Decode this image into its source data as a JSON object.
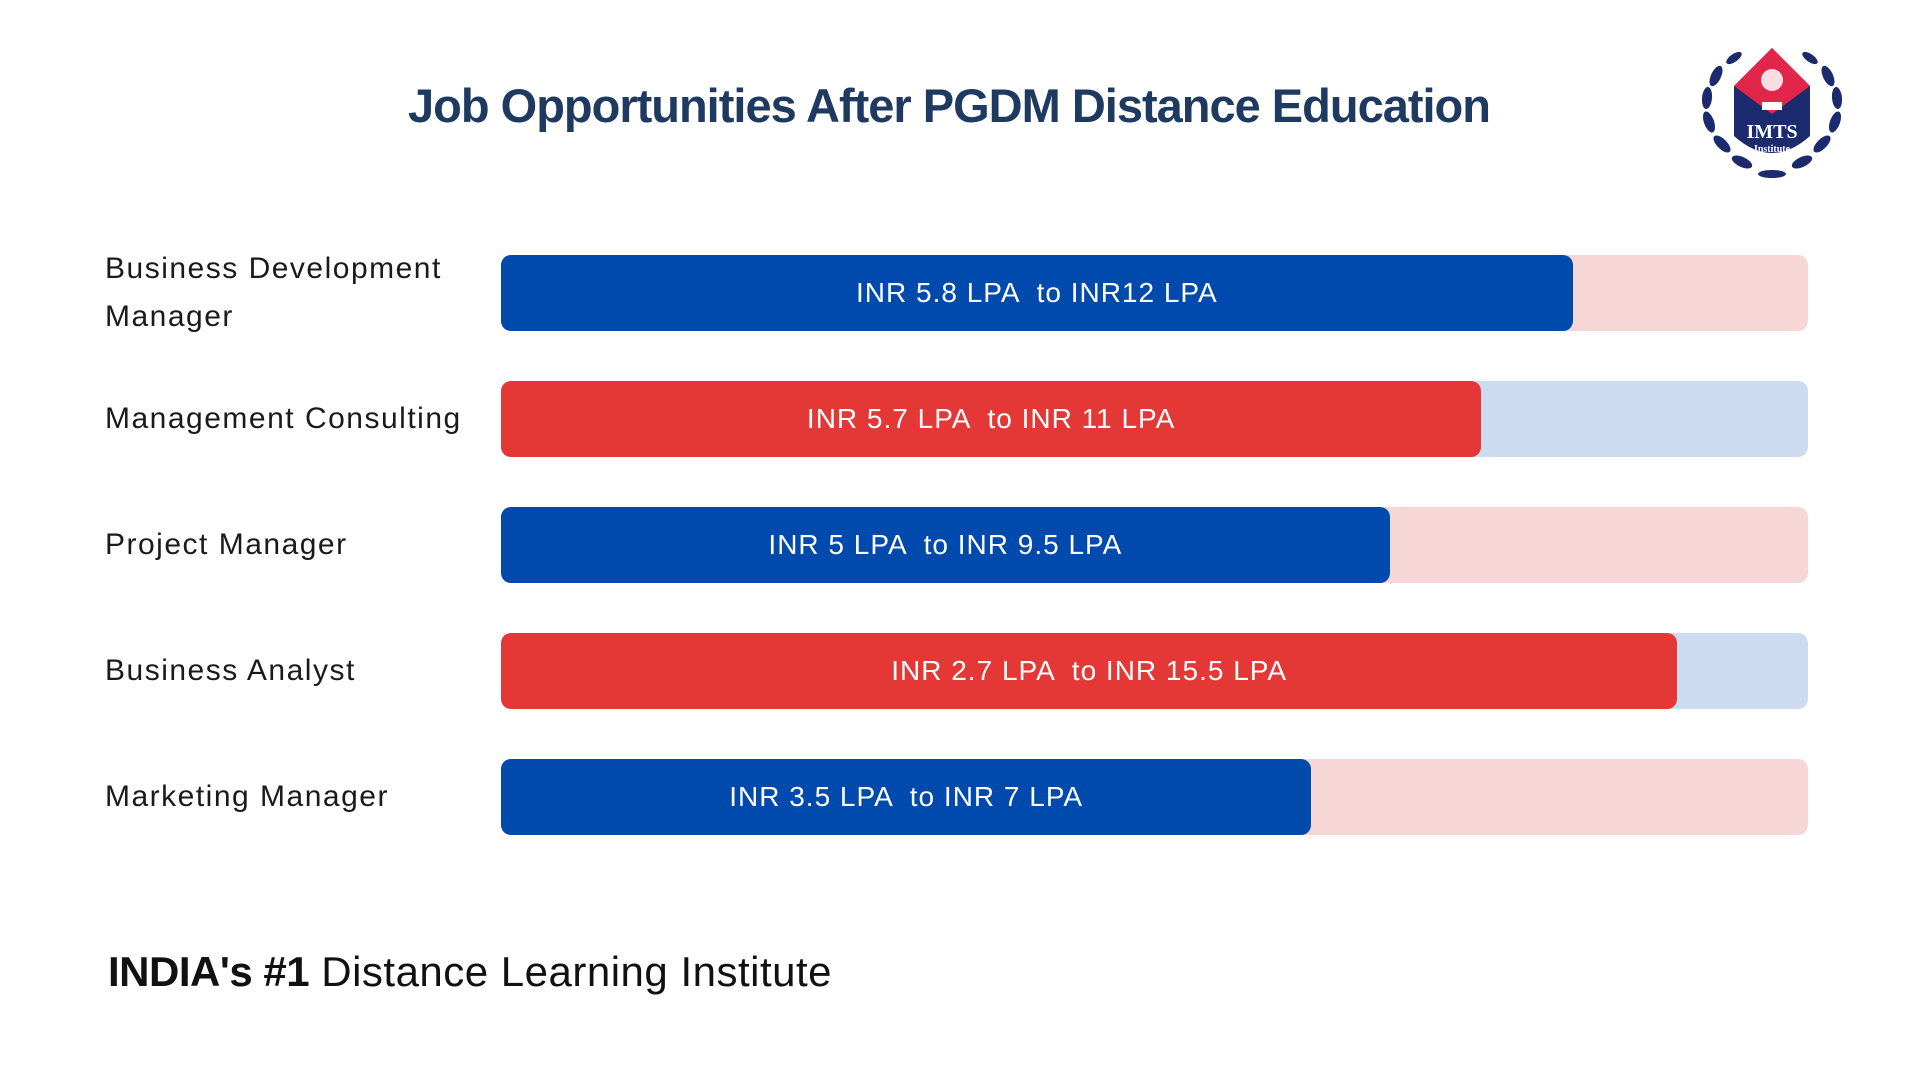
{
  "title": "Job Opportunities After PGDM  Distance Education",
  "logo": {
    "text": "IMTS",
    "subtext": "Institute",
    "colors": {
      "navy": "#1c2a6e",
      "red": "#e1264a"
    }
  },
  "chart_data": {
    "type": "bar",
    "orientation": "horizontal",
    "title": "Job Opportunities After PGDM  Distance Education",
    "categories": [
      "Business Development Manager",
      "Management Consulting",
      "Project Manager",
      "Business Analyst",
      "Marketing Manager"
    ],
    "series": [
      {
        "labels": [
          "INR 5.8 LPA  to INR12 LPA",
          "INR 5.7 LPA  to INR 11 LPA",
          "INR 5 LPA  to INR 9.5 LPA",
          "INR 2.7 LPA  to INR 15.5 LPA",
          "INR 3.5 LPA  to INR 7 LPA"
        ],
        "fill_percent": [
          82,
          75,
          68,
          90,
          62
        ],
        "fill_colors": [
          "#004aad",
          "#e43837",
          "#004aad",
          "#e43837",
          "#004aad"
        ],
        "track_colors": [
          "#f7d6d6",
          "#cddbf0",
          "#f7d6d6",
          "#cddbf0",
          "#f7d6d6"
        ]
      }
    ],
    "xlim": [
      0,
      100
    ],
    "grid": false
  },
  "tagline": {
    "bold": "INDIA's #1",
    "rest": " Distance Learning Institute"
  }
}
